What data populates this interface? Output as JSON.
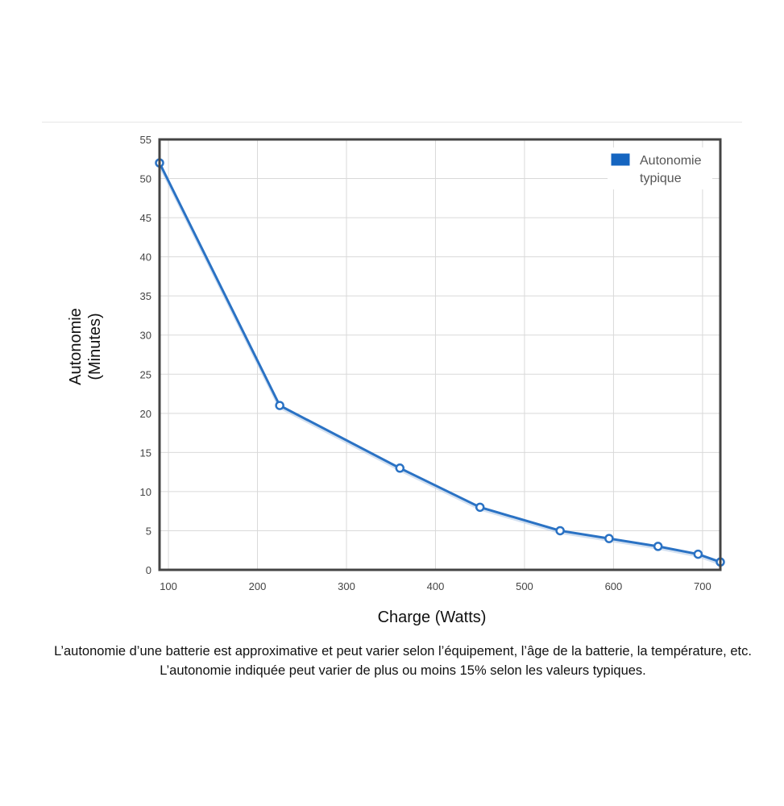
{
  "chart_data": {
    "type": "line",
    "xlabel": "Charge (Watts)",
    "ylabel": "Autonomie (Minutes)",
    "ylabel_lines": [
      "Autonomie",
      "(Minutes)"
    ],
    "xlim": [
      90,
      720
    ],
    "ylim": [
      0,
      55
    ],
    "x_ticks": [
      100,
      200,
      300,
      400,
      500,
      600,
      700
    ],
    "y_ticks": [
      0,
      5,
      10,
      15,
      20,
      25,
      30,
      35,
      40,
      45,
      50,
      55
    ],
    "grid": true,
    "legend_position": "top-right",
    "series": [
      {
        "name": "Autonomie typique",
        "name_lines": [
          "Autonomie",
          "typique"
        ],
        "color": "#2a72c4",
        "x": [
          90,
          225,
          360,
          450,
          540,
          595,
          650,
          695,
          720
        ],
        "y": [
          52,
          21,
          13,
          8,
          5,
          4,
          3,
          2,
          1
        ]
      }
    ]
  },
  "legend_swatch_color": "#1565c0",
  "caption": "L’autonomie d’une batterie est approximative et peut varier selon l’équipement, l’âge de la batterie, la température, etc. L’autonomie indiquée peut varier de plus ou moins 15% selon les valeurs typiques."
}
